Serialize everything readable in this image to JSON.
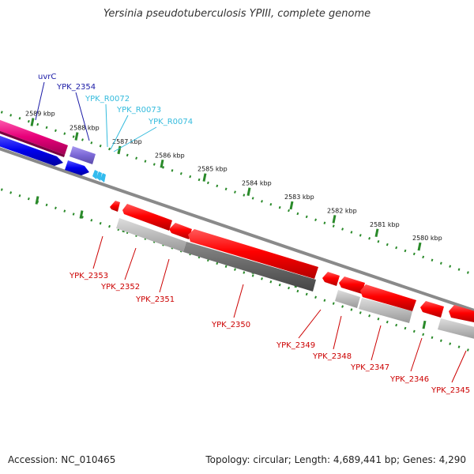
{
  "title": "Yersinia pseudotuberculosis YPIII, complete genome",
  "footer": {
    "accession": "Accession: NC_010465",
    "topology": "Topology: circular; Length: 4,689,441 bp; Genes: 4,290"
  },
  "colors": {
    "forward_rrna": "#e8007a",
    "forward_gene_blue": "#0000ee",
    "forward_cds_purple": "#7b68d6",
    "trna": "#33bbee",
    "reverse_cds": "#ee0000",
    "reverse_gene_light": "#bbbbbb",
    "reverse_gene_dark": "#666666",
    "backbone": "#888888",
    "tick": "#2a8a2a",
    "label_dark_blue": "#1a1aa6",
    "label_cyan": "#33bbdd",
    "label_red": "#cc0000"
  },
  "ticks": [
    {
      "label": "2589 kbp",
      "kbp": 2589
    },
    {
      "label": "2588 kbp",
      "kbp": 2588
    },
    {
      "label": "2587 kbp",
      "kbp": 2587
    },
    {
      "label": "2586 kbp",
      "kbp": 2586
    },
    {
      "label": "2585 kbp",
      "kbp": 2585
    },
    {
      "label": "2584 kbp",
      "kbp": 2584
    },
    {
      "label": "2583 kbp",
      "kbp": 2583
    },
    {
      "label": "2582 kbp",
      "kbp": 2582
    },
    {
      "label": "2581 kbp",
      "kbp": 2581
    },
    {
      "label": "2580 kbp",
      "kbp": 2580
    }
  ],
  "forward_labels": [
    {
      "name": "uvrC",
      "color": "label_dark_blue"
    },
    {
      "name": "YPK_2354",
      "color": "label_dark_blue"
    },
    {
      "name": "YPK_R0072",
      "color": "label_cyan"
    },
    {
      "name": "YPK_R0073",
      "color": "label_cyan"
    },
    {
      "name": "YPK_R0074",
      "color": "label_cyan"
    }
  ],
  "reverse_labels": [
    {
      "name": "YPK_2353"
    },
    {
      "name": "YPK_2352"
    },
    {
      "name": "YPK_2351"
    },
    {
      "name": "YPK_2350"
    },
    {
      "name": "YPK_2349"
    },
    {
      "name": "YPK_2348"
    },
    {
      "name": "YPK_2347"
    },
    {
      "name": "YPK_2346"
    },
    {
      "name": "YPK_2345"
    }
  ]
}
